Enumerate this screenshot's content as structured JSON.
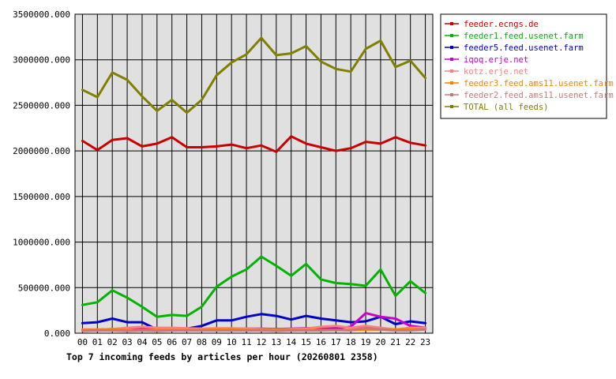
{
  "chart_data": {
    "type": "line",
    "title": "Top 7 incoming feeds by articles per hour (20260801 2358)",
    "xlabel": "",
    "ylabel": "",
    "ylim": [
      0,
      3500000
    ],
    "y_ticks": [
      "0.000",
      "500000.000",
      "1000000.000",
      "1500000.000",
      "2000000.000",
      "2500000.000",
      "3000000.000",
      "3500000.000"
    ],
    "categories": [
      "00",
      "01",
      "02",
      "03",
      "04",
      "05",
      "06",
      "07",
      "08",
      "09",
      "10",
      "11",
      "12",
      "13",
      "14",
      "15",
      "16",
      "17",
      "18",
      "19",
      "20",
      "21",
      "22",
      "23"
    ],
    "grid": true,
    "legend_position": "right",
    "series": [
      {
        "name": "feeder.ecngs.de",
        "color": "#c80000",
        "values": [
          2110000,
          2010000,
          2120000,
          2140000,
          2050000,
          2080000,
          2150000,
          2040000,
          2040000,
          2050000,
          2070000,
          2030000,
          2060000,
          1990000,
          2160000,
          2080000,
          2040000,
          2000000,
          2030000,
          2100000,
          2080000,
          2150000,
          2090000,
          2060000
        ]
      },
      {
        "name": "feeder1.feed.usenet.farm",
        "color": "#00b400",
        "values": [
          310000,
          340000,
          470000,
          390000,
          290000,
          180000,
          200000,
          190000,
          290000,
          510000,
          620000,
          700000,
          840000,
          740000,
          630000,
          760000,
          590000,
          550000,
          540000,
          520000,
          700000,
          410000,
          570000,
          440000
        ]
      },
      {
        "name": "feeder5.feed.usenet.farm",
        "color": "#0000c8",
        "values": [
          110000,
          120000,
          160000,
          120000,
          120000,
          40000,
          50000,
          50000,
          80000,
          140000,
          140000,
          180000,
          210000,
          190000,
          150000,
          190000,
          160000,
          140000,
          120000,
          130000,
          180000,
          100000,
          130000,
          110000
        ]
      },
      {
        "name": "iqoq.erje.net",
        "color": "#c800c8",
        "values": [
          40000,
          40000,
          45000,
          40000,
          45000,
          40000,
          50000,
          45000,
          45000,
          50000,
          50000,
          50000,
          50000,
          45000,
          50000,
          55000,
          60000,
          55000,
          70000,
          220000,
          180000,
          160000,
          80000,
          60000
        ]
      },
      {
        "name": "kotz.erje.net",
        "color": "#ff8080",
        "values": [
          40000,
          40000,
          45000,
          60000,
          70000,
          60000,
          60000,
          55000,
          50000,
          55000,
          55000,
          50000,
          45000,
          40000,
          45000,
          50000,
          70000,
          80000,
          60000,
          80000,
          60000,
          40000,
          60000,
          60000
        ]
      },
      {
        "name": "feeder3.feed.ams11.usenet.farm",
        "color": "#ff8000",
        "values": [
          35000,
          35000,
          40000,
          35000,
          35000,
          35000,
          35000,
          35000,
          35000,
          40000,
          40000,
          35000,
          35000,
          35000,
          35000,
          35000,
          35000,
          35000,
          35000,
          40000,
          40000,
          40000,
          40000,
          45000
        ]
      },
      {
        "name": "feeder2.feed.ams11.usenet.farm",
        "color": "#c87878",
        "values": [
          25000,
          30000,
          30000,
          25000,
          30000,
          25000,
          30000,
          30000,
          30000,
          30000,
          30000,
          30000,
          30000,
          25000,
          30000,
          30000,
          30000,
          35000,
          30000,
          60000,
          40000,
          30000,
          30000,
          40000
        ]
      },
      {
        "name": "TOTAL (all feeds)",
        "color": "#808000",
        "values": [
          2670000,
          2590000,
          2860000,
          2780000,
          2600000,
          2440000,
          2560000,
          2420000,
          2560000,
          2830000,
          2970000,
          3060000,
          3240000,
          3050000,
          3070000,
          3150000,
          2980000,
          2900000,
          2870000,
          3120000,
          3210000,
          2920000,
          2990000,
          2800000
        ]
      }
    ]
  }
}
